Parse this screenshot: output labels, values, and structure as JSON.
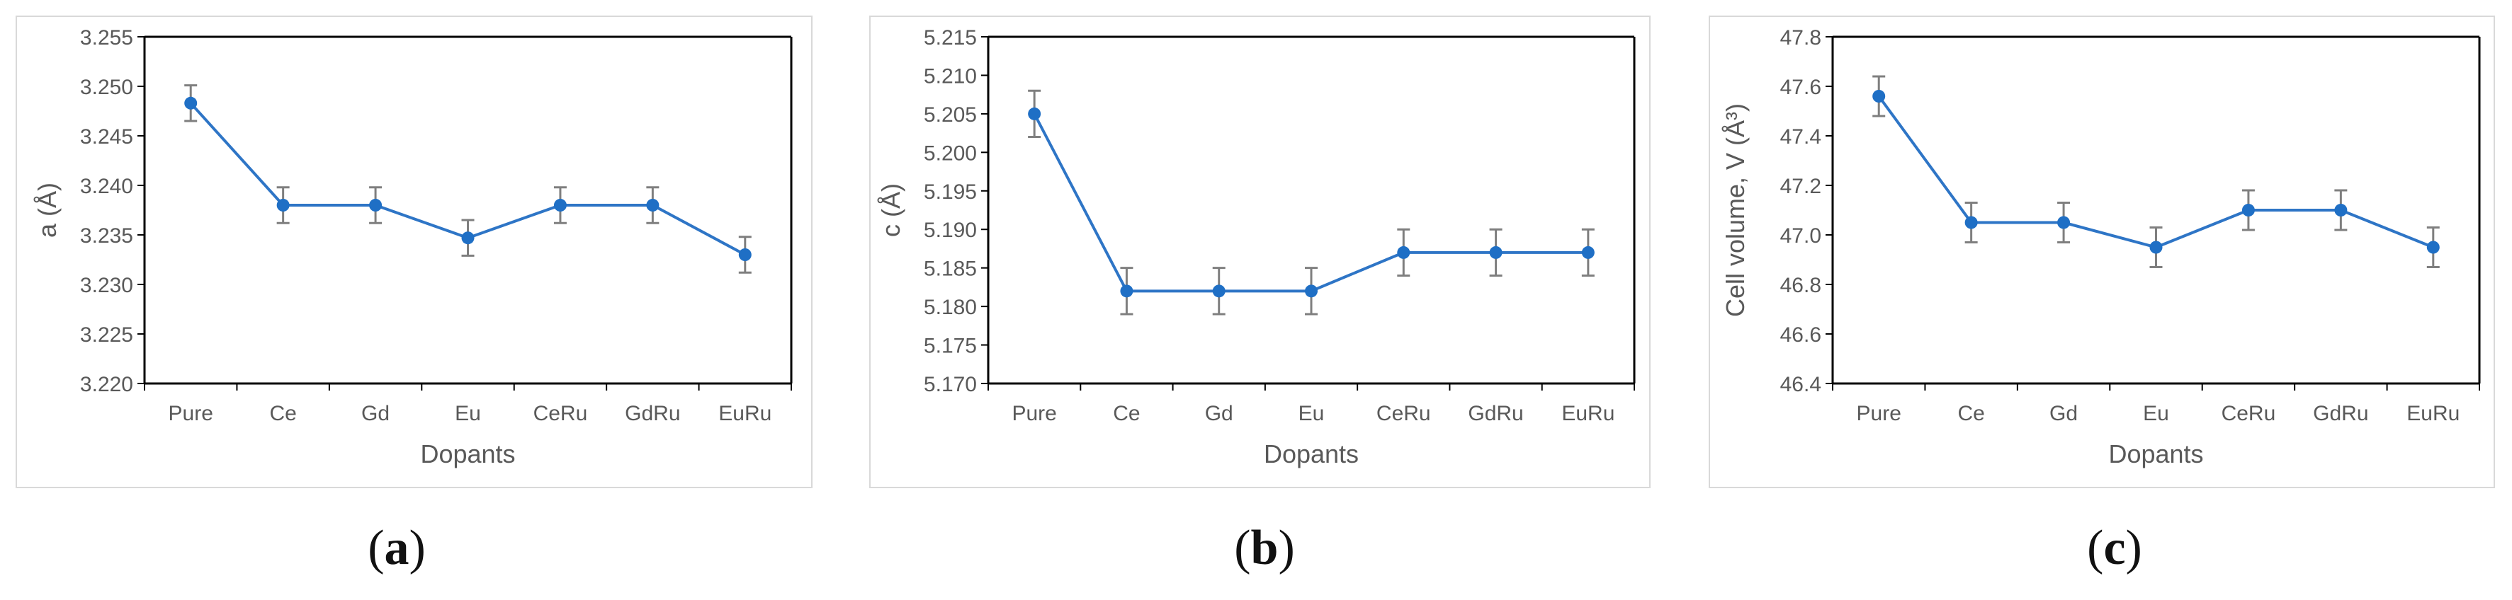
{
  "colors": {
    "series": "#2e75c6",
    "marker": "#1f6fc5",
    "axis": "#000000",
    "tick_text": "#595959",
    "error_bar": "#7f7f7f",
    "frame_border": "#d9d9d9"
  },
  "panels": [
    {
      "id": "a",
      "letter": "a"
    },
    {
      "id": "b",
      "letter": "b"
    },
    {
      "id": "c",
      "letter": "c"
    }
  ],
  "chart_data": [
    {
      "type": "line",
      "categories": [
        "Pure",
        "Ce",
        "Gd",
        "Eu",
        "CeRu",
        "GdRu",
        "EuRu"
      ],
      "series": [
        {
          "values": [
            3.2483,
            3.238,
            3.238,
            3.2347,
            3.238,
            3.238,
            3.233
          ]
        }
      ],
      "error": 0.0018,
      "xlabel": "Dopants",
      "ylabel": "a (Å)",
      "ylim": [
        3.22,
        3.255
      ],
      "yticks": [
        "3.220",
        "3.225",
        "3.230",
        "3.235",
        "3.240",
        "3.245",
        "3.250",
        "3.255"
      ],
      "grid": false
    },
    {
      "type": "line",
      "categories": [
        "Pure",
        "Ce",
        "Gd",
        "Eu",
        "CeRu",
        "GdRu",
        "EuRu"
      ],
      "series": [
        {
          "values": [
            5.205,
            5.182,
            5.182,
            5.182,
            5.187,
            5.187,
            5.187
          ]
        }
      ],
      "error": 0.003,
      "xlabel": "Dopants",
      "ylabel": "c (Å)",
      "ylim": [
        5.17,
        5.215
      ],
      "yticks": [
        "5.170",
        "5.175",
        "5.180",
        "5.185",
        "5.190",
        "5.195",
        "5.200",
        "5.205",
        "5.210",
        "5.215"
      ],
      "grid": false
    },
    {
      "type": "line",
      "categories": [
        "Pure",
        "Ce",
        "Gd",
        "Eu",
        "CeRu",
        "GdRu",
        "EuRu"
      ],
      "series": [
        {
          "values": [
            47.56,
            47.05,
            47.05,
            46.95,
            47.1,
            47.1,
            46.95
          ]
        }
      ],
      "error": 0.08,
      "xlabel": "Dopants",
      "ylabel": "Cell volume, V (Å³)",
      "ylim": [
        46.4,
        47.8
      ],
      "yticks": [
        "46.4",
        "46.6",
        "46.8",
        "47.0",
        "47.2",
        "47.4",
        "47.6",
        "47.8"
      ],
      "grid": false
    }
  ]
}
